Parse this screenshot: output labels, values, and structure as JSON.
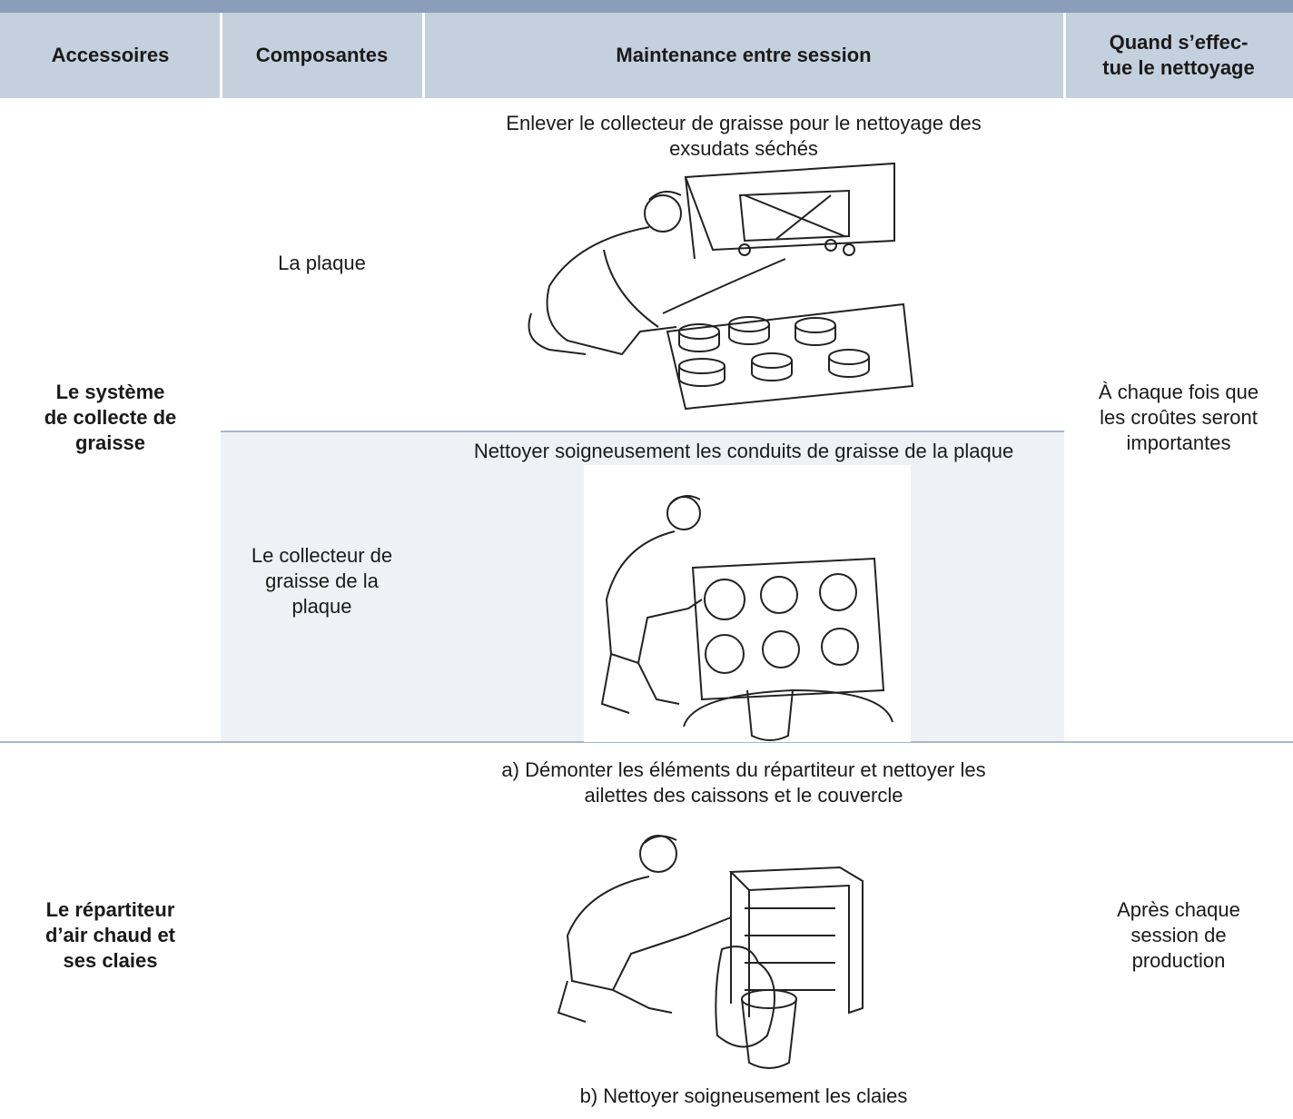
{
  "header": [
    "Accessoires",
    "Composantes",
    "Maintenance entre session",
    [
      "Quand s’effec-",
      "tue le nettoyage"
    ]
  ],
  "rows": [
    {
      "accessory": [
        "Le système",
        "de collecte de",
        "graisse"
      ],
      "when": [
        "À chaque fois que",
        "les croûtes seront",
        "importantes"
      ],
      "components": [
        {
          "name": [
            "La plaque"
          ],
          "task": [
            "Enlever le collecteur de graisse pour le nettoyage des",
            "exsudats séchés"
          ]
        },
        {
          "name": [
            "Le collecteur de",
            "graisse de la",
            "plaque"
          ],
          "task": [
            "Nettoyer soigneusement les conduits de graisse de la plaque"
          ]
        }
      ]
    },
    {
      "accessory": [
        "Le répartiteur",
        "d’air chaud et",
        "ses claies"
      ],
      "when": [
        "Après chaque",
        "session de",
        "production"
      ],
      "task_a": [
        "a) Démonter les éléments du répartiteur et nettoyer les",
        "ailettes des caissons et le couvercle"
      ],
      "task_b": [
        "b)  Nettoyer soigneusement les claies"
      ]
    }
  ]
}
